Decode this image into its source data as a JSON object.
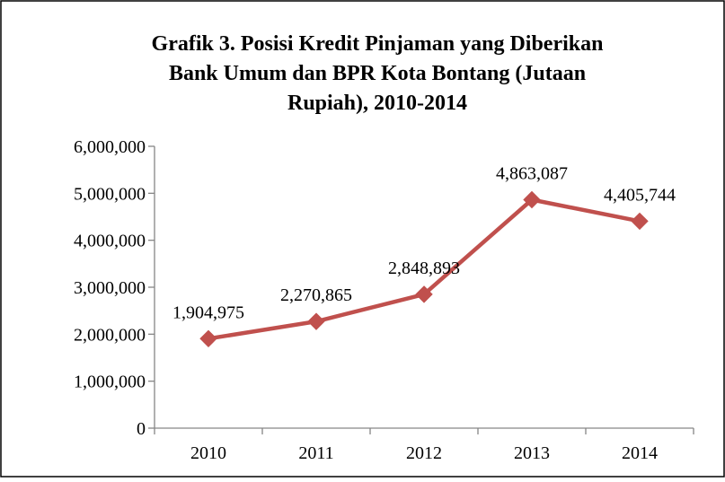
{
  "colors": {
    "series": "#C0504D",
    "axis": "#868686",
    "border": "#000000",
    "background": "#FFFFFF"
  },
  "chart_data": {
    "type": "line",
    "title": "Grafik 3. Posisi Kredit Pinjaman yang Diberikan Bank Umum dan BPR Kota Bontang (Jutaan Rupiah), 2010-2014",
    "title_lines": [
      "Grafik 3. Posisi Kredit Pinjaman yang Diberikan",
      "Bank Umum dan BPR Kota Bontang (Jutaan",
      "Rupiah), 2010-2014"
    ],
    "categories": [
      "2010",
      "2011",
      "2012",
      "2013",
      "2014"
    ],
    "series": [
      {
        "values": [
          1904975,
          2270865,
          2848893,
          4863087,
          4405744
        ],
        "marker": "diamond"
      }
    ],
    "data_labels": [
      "1,904,975",
      "2,270,865",
      "2,848,893",
      "4,863,087",
      "4,405,744"
    ],
    "ylim": [
      0,
      6000000
    ],
    "y_ticks": [
      0,
      1000000,
      2000000,
      3000000,
      4000000,
      5000000,
      6000000
    ],
    "y_tick_labels": [
      "0",
      "1,000,000",
      "2,000,000",
      "3,000,000",
      "4,000,000",
      "5,000,000",
      "6,000,000"
    ],
    "xlabel": "",
    "ylabel": "",
    "grid": false,
    "legend": "none"
  }
}
